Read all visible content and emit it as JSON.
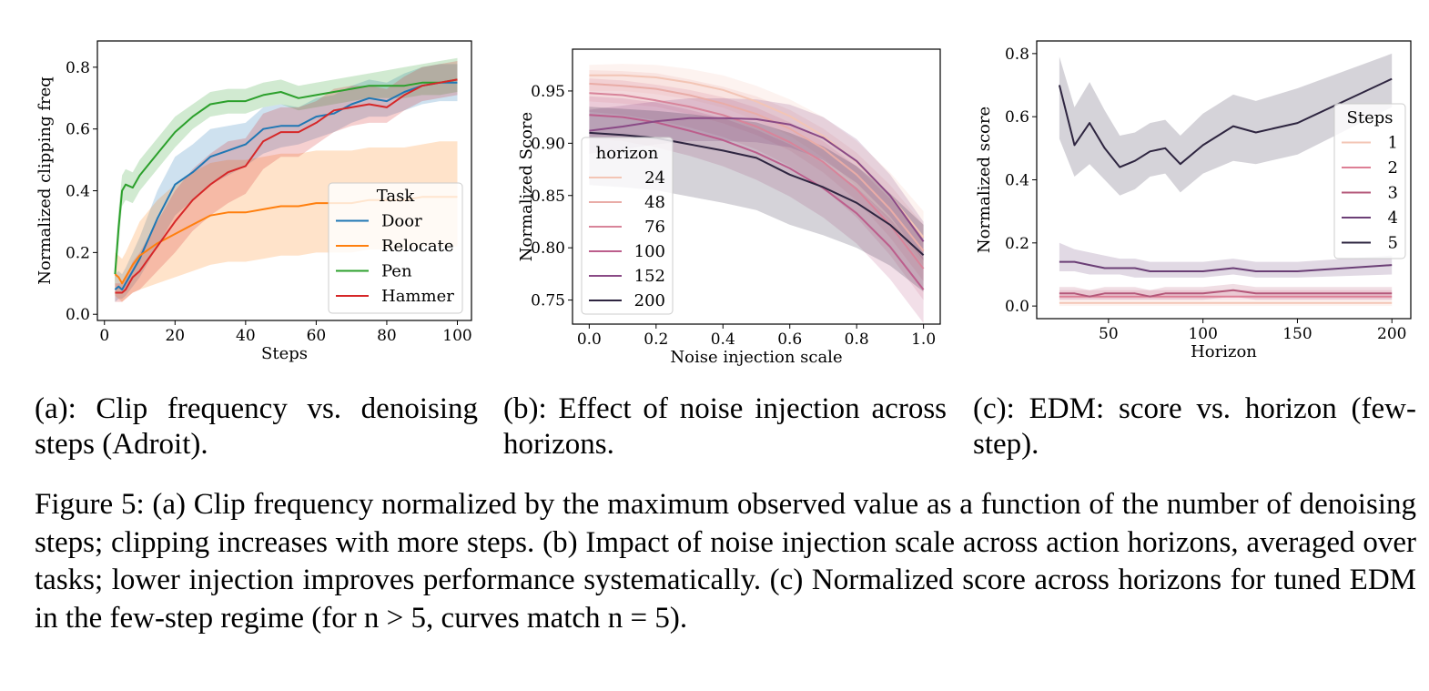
{
  "chart_data": [
    {
      "type": "line",
      "xlabel": "Steps",
      "ylabel": "Normalized clipping freq",
      "xlim": [
        -2,
        104
      ],
      "ylim": [
        -0.02,
        0.885
      ],
      "xticks": [
        "0",
        "20",
        "40",
        "60",
        "80",
        "100"
      ],
      "yticks": [
        "0.0",
        "0.2",
        "0.4",
        "0.6",
        "0.8"
      ],
      "legend_title": "Task",
      "legend_position": "lower-right",
      "grid": false,
      "x": [
        3,
        4,
        5,
        6,
        8,
        10,
        15,
        20,
        25,
        30,
        35,
        40,
        45,
        50,
        55,
        60,
        65,
        70,
        75,
        80,
        85,
        90,
        95,
        100
      ],
      "series": [
        {
          "name": "Door",
          "color": "#1f77b4",
          "values": [
            0.08,
            0.09,
            0.08,
            0.1,
            0.14,
            0.18,
            0.31,
            0.42,
            0.46,
            0.51,
            0.53,
            0.55,
            0.6,
            0.61,
            0.61,
            0.64,
            0.65,
            0.68,
            0.7,
            0.69,
            0.72,
            0.74,
            0.75,
            0.75
          ],
          "lower": [
            0.04,
            0.05,
            0.05,
            0.06,
            0.09,
            0.12,
            0.22,
            0.32,
            0.37,
            0.42,
            0.45,
            0.48,
            0.52,
            0.54,
            0.55,
            0.57,
            0.59,
            0.62,
            0.64,
            0.64,
            0.66,
            0.68,
            0.69,
            0.69
          ],
          "upper": [
            0.13,
            0.14,
            0.13,
            0.15,
            0.2,
            0.25,
            0.4,
            0.51,
            0.55,
            0.6,
            0.61,
            0.62,
            0.67,
            0.68,
            0.67,
            0.7,
            0.71,
            0.74,
            0.76,
            0.75,
            0.78,
            0.8,
            0.81,
            0.81
          ]
        },
        {
          "name": "Relocate",
          "color": "#ff7f0e",
          "values": [
            0.13,
            0.12,
            0.1,
            0.12,
            0.16,
            0.19,
            0.23,
            0.26,
            0.29,
            0.32,
            0.33,
            0.33,
            0.34,
            0.35,
            0.35,
            0.36,
            0.36,
            0.36,
            0.37,
            0.37,
            0.37,
            0.38,
            0.38,
            0.38
          ],
          "lower": [
            0.06,
            0.05,
            0.04,
            0.05,
            0.07,
            0.08,
            0.1,
            0.12,
            0.14,
            0.16,
            0.17,
            0.17,
            0.18,
            0.19,
            0.19,
            0.2,
            0.2,
            0.2,
            0.21,
            0.21,
            0.21,
            0.22,
            0.22,
            0.22
          ],
          "upper": [
            0.2,
            0.19,
            0.18,
            0.2,
            0.25,
            0.3,
            0.37,
            0.42,
            0.46,
            0.49,
            0.5,
            0.5,
            0.51,
            0.52,
            0.52,
            0.53,
            0.53,
            0.53,
            0.54,
            0.54,
            0.54,
            0.55,
            0.56,
            0.56
          ]
        },
        {
          "name": "Pen",
          "color": "#2ca02c",
          "values": [
            0.13,
            0.28,
            0.4,
            0.42,
            0.41,
            0.45,
            0.52,
            0.59,
            0.64,
            0.68,
            0.69,
            0.69,
            0.71,
            0.72,
            0.7,
            0.71,
            0.72,
            0.73,
            0.74,
            0.74,
            0.74,
            0.75,
            0.75,
            0.76
          ],
          "lower": [
            0.09,
            0.22,
            0.35,
            0.37,
            0.36,
            0.4,
            0.47,
            0.54,
            0.6,
            0.64,
            0.65,
            0.65,
            0.67,
            0.68,
            0.66,
            0.67,
            0.68,
            0.69,
            0.7,
            0.7,
            0.7,
            0.71,
            0.71,
            0.72
          ],
          "upper": [
            0.17,
            0.34,
            0.45,
            0.47,
            0.46,
            0.5,
            0.57,
            0.64,
            0.68,
            0.72,
            0.73,
            0.73,
            0.75,
            0.76,
            0.74,
            0.75,
            0.76,
            0.77,
            0.78,
            0.79,
            0.8,
            0.81,
            0.82,
            0.83
          ]
        },
        {
          "name": "Hammer",
          "color": "#d62728",
          "values": [
            0.07,
            0.07,
            0.07,
            0.08,
            0.12,
            0.14,
            0.22,
            0.3,
            0.37,
            0.42,
            0.46,
            0.48,
            0.56,
            0.59,
            0.59,
            0.62,
            0.66,
            0.67,
            0.68,
            0.67,
            0.71,
            0.74,
            0.75,
            0.76
          ],
          "lower": [
            0.04,
            0.04,
            0.04,
            0.05,
            0.07,
            0.08,
            0.14,
            0.2,
            0.27,
            0.32,
            0.36,
            0.39,
            0.47,
            0.51,
            0.51,
            0.55,
            0.59,
            0.61,
            0.62,
            0.62,
            0.66,
            0.69,
            0.7,
            0.71
          ],
          "upper": [
            0.1,
            0.1,
            0.1,
            0.12,
            0.17,
            0.2,
            0.3,
            0.4,
            0.47,
            0.52,
            0.56,
            0.57,
            0.65,
            0.67,
            0.67,
            0.69,
            0.73,
            0.74,
            0.74,
            0.73,
            0.77,
            0.8,
            0.81,
            0.82
          ]
        }
      ]
    },
    {
      "type": "line",
      "xlabel": "Noise injection scale",
      "ylabel": "Normalized Score",
      "xlim": [
        -0.05,
        1.05
      ],
      "ylim": [
        0.727,
        0.99
      ],
      "xticks": [
        "0.0",
        "0.2",
        "0.4",
        "0.6",
        "0.8",
        "1.0"
      ],
      "yticks": [
        "0.75",
        "0.80",
        "0.85",
        "0.90",
        "0.95"
      ],
      "legend_title": "horizon",
      "legend_position": "lower-left",
      "grid": false,
      "x": [
        0.0,
        0.1,
        0.2,
        0.3,
        0.4,
        0.5,
        0.6,
        0.7,
        0.8,
        0.9,
        1.0
      ],
      "series": [
        {
          "name": "24",
          "color": "#f3c5b5",
          "values": [
            0.965,
            0.965,
            0.963,
            0.958,
            0.951,
            0.94,
            0.926,
            0.907,
            0.882,
            0.85,
            0.81
          ],
          "lower": [
            0.95,
            0.95,
            0.947,
            0.942,
            0.934,
            0.922,
            0.907,
            0.886,
            0.859,
            0.825,
            0.783
          ],
          "upper": [
            0.975,
            0.976,
            0.975,
            0.971,
            0.965,
            0.955,
            0.942,
            0.925,
            0.902,
            0.872,
            0.835
          ]
        },
        {
          "name": "48",
          "color": "#e9aca7",
          "values": [
            0.957,
            0.955,
            0.952,
            0.946,
            0.938,
            0.928,
            0.914,
            0.895,
            0.87,
            0.837,
            0.797
          ],
          "lower": [
            0.94,
            0.938,
            0.935,
            0.928,
            0.919,
            0.908,
            0.893,
            0.872,
            0.845,
            0.81,
            0.768
          ],
          "upper": [
            0.97,
            0.969,
            0.967,
            0.961,
            0.954,
            0.945,
            0.932,
            0.914,
            0.891,
            0.86,
            0.822
          ]
        },
        {
          "name": "76",
          "color": "#d8849a",
          "values": [
            0.948,
            0.946,
            0.941,
            0.935,
            0.927,
            0.916,
            0.901,
            0.882,
            0.856,
            0.822,
            0.78
          ],
          "lower": [
            0.93,
            0.927,
            0.922,
            0.915,
            0.906,
            0.894,
            0.878,
            0.857,
            0.829,
            0.793,
            0.75
          ],
          "upper": [
            0.962,
            0.96,
            0.956,
            0.951,
            0.944,
            0.934,
            0.92,
            0.902,
            0.878,
            0.847,
            0.808
          ]
        },
        {
          "name": "100",
          "color": "#bc5e8c",
          "values": [
            0.927,
            0.925,
            0.92,
            0.912,
            0.903,
            0.891,
            0.876,
            0.857,
            0.833,
            0.801,
            0.76
          ],
          "lower": [
            0.905,
            0.902,
            0.896,
            0.888,
            0.878,
            0.865,
            0.849,
            0.829,
            0.804,
            0.77,
            0.728
          ],
          "upper": [
            0.945,
            0.943,
            0.939,
            0.932,
            0.924,
            0.913,
            0.899,
            0.881,
            0.858,
            0.828,
            0.79
          ]
        },
        {
          "name": "152",
          "color": "#8a4a86",
          "values": [
            0.912,
            0.916,
            0.921,
            0.924,
            0.924,
            0.923,
            0.918,
            0.905,
            0.883,
            0.85,
            0.806
          ],
          "lower": [
            0.89,
            0.894,
            0.899,
            0.902,
            0.902,
            0.901,
            0.896,
            0.884,
            0.862,
            0.83,
            0.788
          ],
          "upper": [
            0.932,
            0.936,
            0.94,
            0.943,
            0.943,
            0.942,
            0.937,
            0.925,
            0.904,
            0.87,
            0.825
          ]
        },
        {
          "name": "200",
          "color": "#2e2540",
          "values": [
            0.91,
            0.908,
            0.905,
            0.899,
            0.893,
            0.886,
            0.87,
            0.858,
            0.843,
            0.822,
            0.793
          ],
          "lower": [
            0.86,
            0.858,
            0.855,
            0.849,
            0.843,
            0.836,
            0.822,
            0.812,
            0.8,
            0.783,
            0.758
          ],
          "upper": [
            0.935,
            0.933,
            0.931,
            0.928,
            0.924,
            0.92,
            0.91,
            0.897,
            0.878,
            0.852,
            0.822
          ]
        }
      ]
    },
    {
      "type": "line",
      "xlabel": "Horizon",
      "ylabel": "Normalized score",
      "xlim": [
        12,
        210
      ],
      "ylim": [
        -0.04,
        0.84
      ],
      "xticks": [
        "50",
        "100",
        "150",
        "200"
      ],
      "yticks": [
        "0.0",
        "0.2",
        "0.4",
        "0.6",
        "0.8"
      ],
      "legend_title": "Steps",
      "legend_position": "right",
      "grid": false,
      "x": [
        24,
        32,
        40,
        48,
        56,
        64,
        72,
        80,
        88,
        100,
        116,
        128,
        150,
        200
      ],
      "series": [
        {
          "name": "1",
          "color": "#f3c5b5",
          "values": [
            0.01,
            0.01,
            0.01,
            0.01,
            0.01,
            0.01,
            0.01,
            0.01,
            0.01,
            0.01,
            0.01,
            0.01,
            0.01,
            0.01
          ],
          "lower": [
            0.0,
            0.0,
            0.0,
            0.0,
            0.0,
            0.0,
            0.0,
            0.0,
            0.0,
            0.0,
            0.0,
            0.0,
            0.0,
            0.0
          ],
          "upper": [
            0.02,
            0.02,
            0.02,
            0.02,
            0.02,
            0.02,
            0.02,
            0.02,
            0.02,
            0.02,
            0.02,
            0.02,
            0.02,
            0.02
          ]
        },
        {
          "name": "2",
          "color": "#dd7f95",
          "values": [
            0.03,
            0.03,
            0.03,
            0.03,
            0.03,
            0.03,
            0.03,
            0.03,
            0.03,
            0.03,
            0.03,
            0.03,
            0.03,
            0.03
          ],
          "lower": [
            0.02,
            0.02,
            0.02,
            0.02,
            0.02,
            0.02,
            0.02,
            0.02,
            0.02,
            0.02,
            0.02,
            0.02,
            0.02,
            0.02
          ],
          "upper": [
            0.05,
            0.05,
            0.05,
            0.05,
            0.05,
            0.05,
            0.05,
            0.05,
            0.05,
            0.05,
            0.05,
            0.05,
            0.05,
            0.05
          ]
        },
        {
          "name": "3",
          "color": "#b4587a",
          "values": [
            0.04,
            0.04,
            0.03,
            0.04,
            0.04,
            0.04,
            0.03,
            0.04,
            0.04,
            0.04,
            0.05,
            0.04,
            0.04,
            0.04
          ],
          "lower": [
            0.02,
            0.02,
            0.02,
            0.02,
            0.02,
            0.02,
            0.02,
            0.02,
            0.02,
            0.02,
            0.03,
            0.02,
            0.02,
            0.02
          ],
          "upper": [
            0.06,
            0.06,
            0.05,
            0.06,
            0.06,
            0.06,
            0.05,
            0.06,
            0.06,
            0.06,
            0.07,
            0.06,
            0.06,
            0.06
          ]
        },
        {
          "name": "4",
          "color": "#6b3f76",
          "values": [
            0.14,
            0.14,
            0.13,
            0.12,
            0.12,
            0.12,
            0.11,
            0.11,
            0.11,
            0.11,
            0.12,
            0.11,
            0.11,
            0.13
          ],
          "lower": [
            0.11,
            0.11,
            0.1,
            0.1,
            0.1,
            0.09,
            0.09,
            0.09,
            0.09,
            0.09,
            0.1,
            0.09,
            0.09,
            0.1
          ],
          "upper": [
            0.2,
            0.18,
            0.17,
            0.16,
            0.15,
            0.15,
            0.14,
            0.14,
            0.14,
            0.14,
            0.15,
            0.14,
            0.14,
            0.16
          ]
        },
        {
          "name": "5",
          "color": "#2e2540",
          "values": [
            0.7,
            0.51,
            0.58,
            0.5,
            0.44,
            0.46,
            0.49,
            0.5,
            0.45,
            0.51,
            0.57,
            0.55,
            0.58,
            0.72
          ],
          "lower": [
            0.53,
            0.41,
            0.45,
            0.4,
            0.35,
            0.37,
            0.41,
            0.42,
            0.36,
            0.42,
            0.46,
            0.45,
            0.48,
            0.63
          ],
          "upper": [
            0.79,
            0.63,
            0.71,
            0.62,
            0.54,
            0.55,
            0.58,
            0.59,
            0.54,
            0.61,
            0.67,
            0.65,
            0.69,
            0.8
          ]
        }
      ]
    }
  ],
  "captions": {
    "a": "(a):  Clip frequency vs. denoising steps (Adroit).",
    "b": "(b): Effect of noise injection across horizons.",
    "c": "(c):  EDM: score vs. horizon (few-step).",
    "figure": "Figure 5: (a) Clip frequency normalized by the maximum observed value as a function of the number of denoising steps; clipping increases with more steps. (b) Impact of noise injection scale across action horizons, averaged over tasks; lower injection improves performance systematically. (c) Normalized score across horizons for tuned EDM in the few-step regime (for n > 5, curves match n = 5)."
  }
}
